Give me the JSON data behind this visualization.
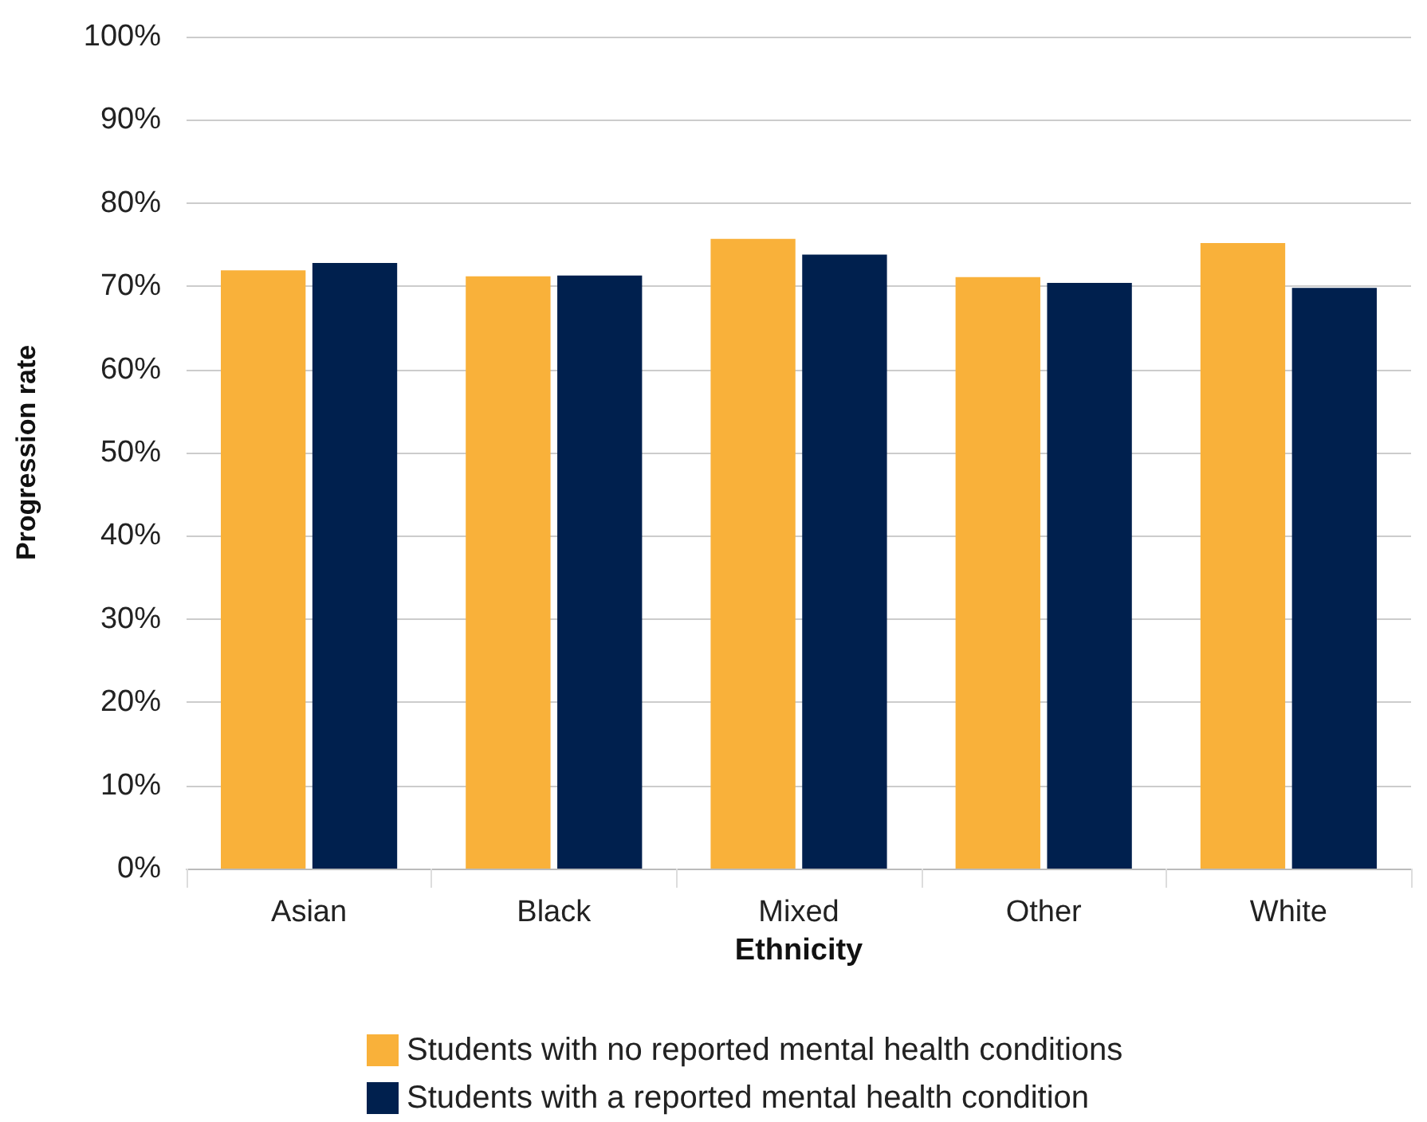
{
  "chart_data": {
    "type": "bar",
    "xlabel": "Ethnicity",
    "ylabel": "Progression rate",
    "categories": [
      "Asian",
      "Black",
      "Mixed",
      "Other",
      "White"
    ],
    "series": [
      {
        "name": "Students with no reported mental health conditions",
        "color": "#f9b13a",
        "values": [
          71.9,
          71.2,
          75.7,
          71.1,
          75.2
        ]
      },
      {
        "name": "Students with a reported mental health condition",
        "color": "#00204e",
        "values": [
          72.8,
          71.3,
          73.8,
          70.4,
          69.8
        ]
      }
    ],
    "ylim": [
      0,
      100
    ],
    "yticks": [
      {
        "value": 0,
        "label": "0%"
      },
      {
        "value": 10,
        "label": "10%"
      },
      {
        "value": 20,
        "label": "20%"
      },
      {
        "value": 30,
        "label": "30%"
      },
      {
        "value": 40,
        "label": "40%"
      },
      {
        "value": 50,
        "label": "50%"
      },
      {
        "value": 60,
        "label": "60%"
      },
      {
        "value": 70,
        "label": "70%"
      },
      {
        "value": 80,
        "label": "80%"
      },
      {
        "value": 90,
        "label": "90%"
      },
      {
        "value": 100,
        "label": "100%"
      }
    ],
    "grid": "y",
    "legend": "bottom"
  }
}
